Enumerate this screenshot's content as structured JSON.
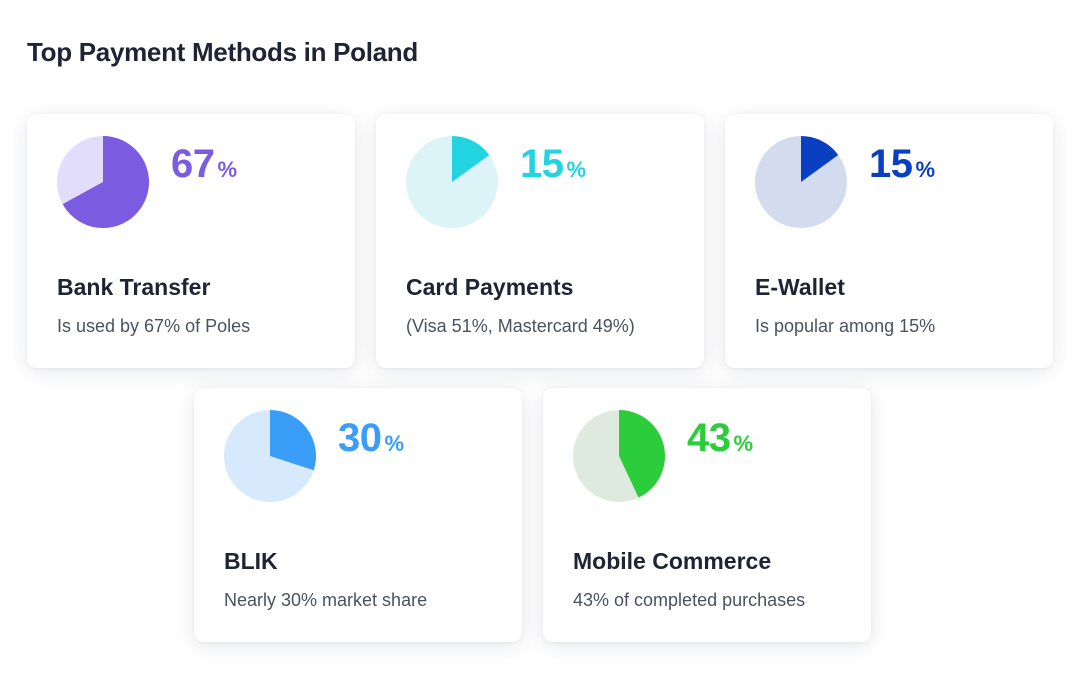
{
  "title": "Top Payment Methods in Poland",
  "chart_data": {
    "type": "pie",
    "title": "Top Payment Methods in Poland",
    "unit": "%",
    "items": [
      {
        "name": "Bank Transfer",
        "value": 67,
        "description": "Is used by 67% of Poles",
        "color": "#7b5ce0",
        "track_color": "#e2ddfb"
      },
      {
        "name": "Card Payments",
        "value": 15,
        "description": "(Visa 51%, Mastercard 49%)",
        "color": "#22d3e0",
        "track_color": "#dcf4f8"
      },
      {
        "name": "E-Wallet",
        "value": 15,
        "description": "Is popular among 15%",
        "color": "#0b3fc2",
        "track_color": "#d3dbef"
      },
      {
        "name": "BLIK",
        "value": 30,
        "description": "Nearly 30% market share",
        "color": "#3a9ef8",
        "track_color": "#d7e9fc"
      },
      {
        "name": "Mobile Commerce",
        "value": 43,
        "description": "43% of completed purchases",
        "color": "#2ccd3a",
        "track_color": "#dfeadf"
      }
    ]
  }
}
